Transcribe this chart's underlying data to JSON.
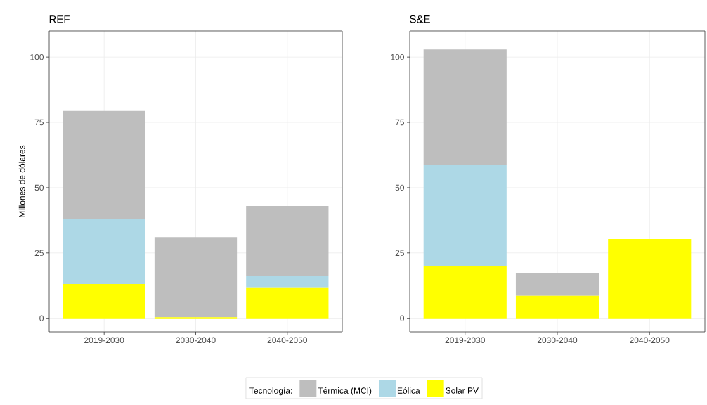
{
  "chart_data": [
    {
      "type": "bar",
      "stacked": true,
      "title": "REF",
      "ylabel": "Millones de dólares",
      "categories": [
        "2019-2030",
        "2030-2040",
        "2040-2050"
      ],
      "series": [
        {
          "name": "Solar PV",
          "color": "#ffff00",
          "values": [
            13.1,
            0.4,
            11.8
          ]
        },
        {
          "name": "Eólica",
          "color": "#add8e6",
          "values": [
            25.0,
            0,
            4.4
          ]
        },
        {
          "name": "Térmica (MCI)",
          "color": "#bebebe",
          "values": [
            41.3,
            30.7,
            26.8
          ]
        }
      ],
      "ylim": [
        -5.2,
        110
      ],
      "yticks": [
        0,
        25,
        50,
        75,
        100
      ],
      "grid": true,
      "legend": "bottom",
      "legend_title": "Tecnología:"
    },
    {
      "type": "bar",
      "stacked": true,
      "title": "S&E",
      "categories": [
        "2019-2030",
        "2030-2040",
        "2040-2050"
      ],
      "series": [
        {
          "color": "#ffff00",
          "values": [
            19.9,
            8.6,
            30.3
          ]
        },
        {
          "color": "#add8e6",
          "values": [
            38.8,
            0,
            0
          ]
        },
        {
          "color": "#bebebe",
          "values": [
            44.2,
            8.8,
            0
          ]
        }
      ],
      "ylim": [
        -5.2,
        110
      ],
      "yticks": [
        0,
        25,
        50,
        75,
        100
      ],
      "grid": true
    }
  ]
}
